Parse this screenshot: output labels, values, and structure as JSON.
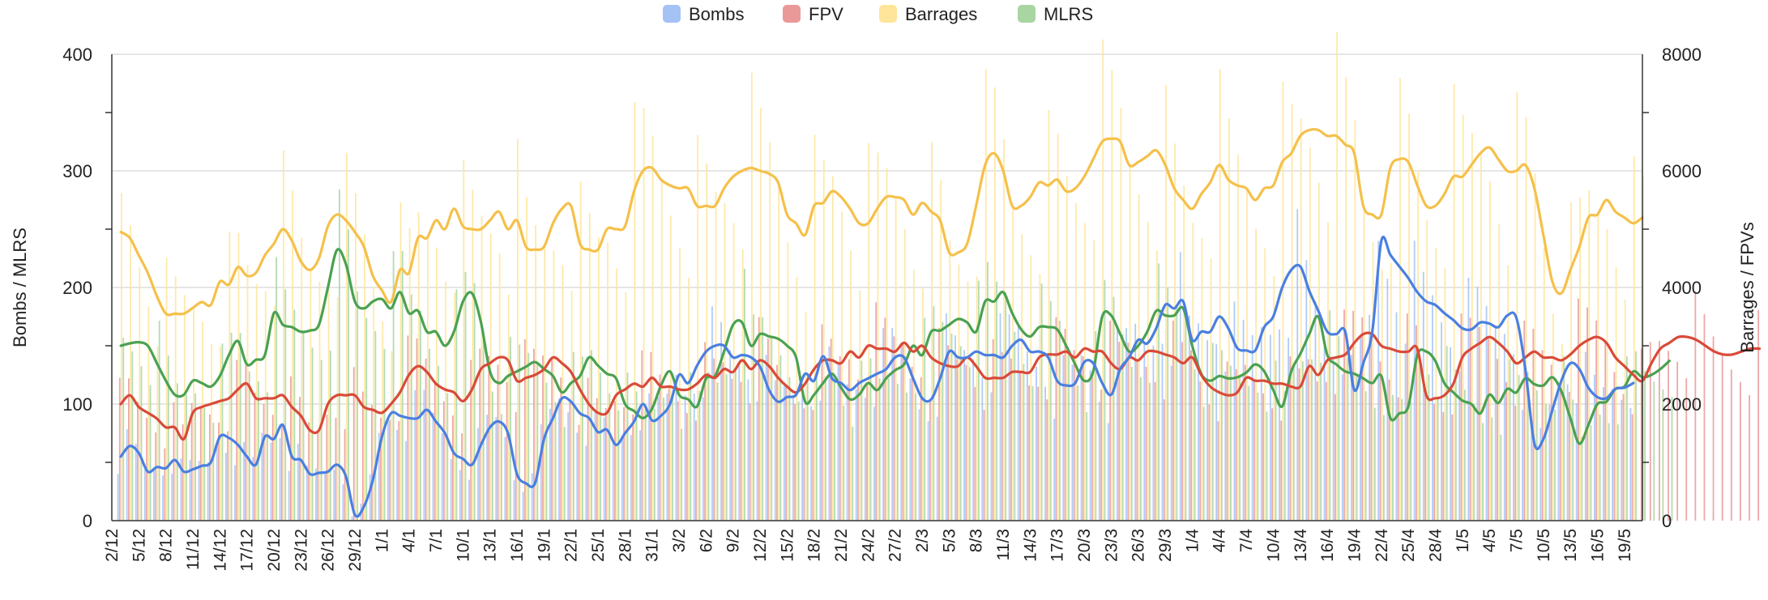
{
  "chart_data": {
    "type": "line",
    "subtype": "dual-axis line chart over daily bars",
    "legend_position": "top-center",
    "grid": true,
    "left_axis": {
      "label": "Bombs / MLRS",
      "ylim": [
        0,
        400
      ],
      "ticks": [
        0,
        100,
        200,
        300,
        400
      ]
    },
    "right_axis": {
      "label": "Barrages / FPVs",
      "ylim": [
        0,
        8000
      ],
      "ticks": [
        0,
        2000,
        4000,
        6000,
        8000
      ]
    },
    "x_tick_labels": [
      "2/12",
      "5/12",
      "8/12",
      "11/12",
      "14/12",
      "17/12",
      "20/12",
      "23/12",
      "26/12",
      "29/12",
      "1/1",
      "4/1",
      "7/1",
      "10/1",
      "13/1",
      "16/1",
      "19/1",
      "22/1",
      "25/1",
      "28/1",
      "31/1",
      "3/2",
      "6/2",
      "9/2",
      "12/2",
      "15/2",
      "18/2",
      "21/2",
      "24/2",
      "27/2",
      "2/3",
      "5/3",
      "8/3",
      "11/3",
      "14/3",
      "17/3",
      "20/3",
      "23/3",
      "26/3",
      "29/3",
      "1/4",
      "4/4",
      "7/4",
      "10/4",
      "13/4",
      "16/4",
      "19/4",
      "22/4",
      "25/4",
      "28/4",
      "1/5",
      "4/5",
      "7/5",
      "10/5",
      "13/5",
      "16/5",
      "19/5"
    ],
    "x_start_day": 0,
    "x_end_day": 170,
    "x_tick_step_days": 3,
    "series": [
      {
        "name": "Bombs",
        "axis": "left",
        "color": "#4a7fe0",
        "legend_color": "#a4c2f4",
        "start_day": 1,
        "values": [
          55,
          64,
          58,
          42,
          46,
          45,
          52,
          42,
          44,
          47,
          50,
          72,
          71,
          65,
          55,
          48,
          72,
          70,
          82,
          55,
          52,
          40,
          41,
          42,
          48,
          38,
          5,
          12,
          35,
          72,
          92,
          90,
          88,
          88,
          95,
          85,
          75,
          58,
          53,
          48,
          65,
          80,
          85,
          75,
          40,
          32,
          32,
          70,
          88,
          105,
          102,
          92,
          88,
          76,
          78,
          65,
          75,
          85,
          100,
          86,
          90,
          100,
          125,
          118,
          133,
          145,
          150,
          150,
          140,
          142,
          140,
          132,
          112,
          102,
          106,
          108,
          126,
          120,
          141,
          122,
          118,
          112,
          118,
          122,
          126,
          130,
          140,
          140,
          122,
          105,
          104,
          122,
          145,
          140,
          140,
          145,
          142,
          142,
          140,
          150,
          155,
          145,
          145,
          140,
          120,
          116,
          118,
          136,
          135,
          118,
          108,
          130,
          140,
          155,
          152,
          165,
          185,
          182,
          188,
          155,
          162,
          162,
          175,
          165,
          148,
          146,
          146,
          166,
          175,
          200,
          215,
          218,
          197,
          180,
          162,
          160,
          162,
          112,
          135,
          162,
          240,
          228,
          218,
          208,
          196,
          188,
          185,
          178,
          172,
          165,
          164,
          170,
          169,
          166,
          176,
          174,
          130,
          66,
          70,
          95,
          120,
          135,
          130,
          114,
          106,
          105,
          113,
          114,
          118
        ]
      },
      {
        "name": "FPV",
        "axis": "right",
        "color": "#d94a38",
        "legend_color": "#ea9999",
        "start_day": 1,
        "values": [
          2000,
          2150,
          1950,
          1850,
          1750,
          1600,
          1600,
          1400,
          1850,
          1950,
          2000,
          2050,
          2100,
          2250,
          2350,
          2100,
          2100,
          2100,
          2150,
          1950,
          1800,
          1550,
          1550,
          2000,
          2150,
          2150,
          2150,
          1950,
          1900,
          1850,
          2000,
          2200,
          2500,
          2650,
          2550,
          2350,
          2250,
          2200,
          2050,
          2250,
          2600,
          2700,
          2800,
          2750,
          2400,
          2450,
          2500,
          2600,
          2800,
          2700,
          2550,
          2250,
          2000,
          1850,
          1850,
          2150,
          2250,
          2350,
          2300,
          2450,
          2300,
          2300,
          2250,
          2250,
          2350,
          2500,
          2450,
          2600,
          2550,
          2750,
          2600,
          2750,
          2650,
          2450,
          2300,
          2200,
          2350,
          2600,
          2750,
          2750,
          2700,
          2900,
          2800,
          3000,
          2950,
          2950,
          2900,
          3050,
          2900,
          3000,
          2800,
          2700,
          2650,
          2650,
          2800,
          2650,
          2450,
          2450,
          2450,
          2550,
          2550,
          2550,
          2800,
          2850,
          2850,
          2900,
          2800,
          2950,
          2900,
          2900,
          2700,
          2600,
          2800,
          2750,
          2900,
          2900,
          2850,
          2800,
          2700,
          2800,
          2500,
          2300,
          2200,
          2150,
          2200,
          2450,
          2400,
          2400,
          2350,
          2350,
          2300,
          2300,
          2650,
          2500,
          2750,
          2800,
          2850,
          3050,
          3200,
          3200,
          3000,
          2950,
          2900,
          2900,
          2950,
          2150,
          2100,
          2150,
          2350,
          2800,
          2950,
          3050,
          3150,
          3050,
          2900,
          2700,
          2800,
          2900,
          2800,
          2800,
          2750,
          2850,
          3000,
          3100,
          3150,
          3050,
          2800,
          2650,
          2500,
          2400,
          2700,
          2950,
          3050,
          3150,
          3150,
          3100,
          3000,
          2900,
          2850,
          2850,
          2900,
          2950,
          2950
        ]
      },
      {
        "name": "Barrages",
        "axis": "right",
        "color": "#f5c04a",
        "legend_color": "#ffe599",
        "start_day": 1,
        "values": [
          4950,
          4850,
          4550,
          4250,
          3850,
          3550,
          3550,
          3550,
          3650,
          3750,
          3700,
          4100,
          4050,
          4350,
          4200,
          4250,
          4550,
          4750,
          5000,
          4800,
          4450,
          4300,
          4500,
          5050,
          5250,
          5150,
          4950,
          4700,
          4200,
          3950,
          3750,
          4300,
          4250,
          4850,
          4850,
          5150,
          5000,
          5350,
          5050,
          5000,
          5000,
          5150,
          5300,
          5000,
          5150,
          4700,
          4650,
          4700,
          5100,
          5350,
          5400,
          4750,
          4650,
          4650,
          5000,
          5000,
          5050,
          5650,
          6000,
          6050,
          5850,
          5750,
          5700,
          5700,
          5400,
          5400,
          5400,
          5700,
          5900,
          6000,
          6050,
          6000,
          5950,
          5800,
          5250,
          5100,
          4900,
          5400,
          5450,
          5650,
          5550,
          5350,
          5100,
          5100,
          5350,
          5550,
          5550,
          5500,
          5250,
          5450,
          5300,
          5150,
          4600,
          4600,
          4750,
          5400,
          6100,
          6300,
          6000,
          5400,
          5400,
          5550,
          5800,
          5750,
          5850,
          5650,
          5700,
          5900,
          6200,
          6500,
          6550,
          6500,
          6100,
          6150,
          6250,
          6350,
          6100,
          5700,
          5500,
          5350,
          5600,
          5800,
          6100,
          5850,
          5750,
          5700,
          5500,
          5700,
          5750,
          6150,
          6300,
          6600,
          6700,
          6700,
          6600,
          6600,
          6450,
          6300,
          5400,
          5250,
          5250,
          6050,
          6200,
          6150,
          5750,
          5400,
          5400,
          5600,
          5900,
          5900,
          6100,
          6300,
          6400,
          6200,
          6000,
          6000,
          6100,
          5700,
          4900,
          4100,
          3900,
          4300,
          4700,
          5200,
          5250,
          5500,
          5300,
          5200,
          5100,
          5200
        ]
      },
      {
        "name": "MLRS",
        "axis": "left",
        "color": "#4aa150",
        "legend_color": "#a8d5a2",
        "start_day": 1,
        "values": [
          150,
          152,
          153,
          150,
          135,
          120,
          108,
          108,
          120,
          118,
          115,
          124,
          142,
          154,
          134,
          138,
          142,
          178,
          168,
          166,
          162,
          163,
          168,
          200,
          232,
          220,
          188,
          182,
          188,
          190,
          182,
          196,
          178,
          180,
          162,
          162,
          150,
          162,
          188,
          195,
          170,
          128,
          118,
          124,
          128,
          132,
          136,
          130,
          124,
          110,
          118,
          124,
          140,
          133,
          126,
          122,
          100,
          94,
          88,
          96,
          116,
          128,
          108,
          104,
          98,
          122,
          124,
          145,
          168,
          170,
          150,
          160,
          158,
          156,
          150,
          140,
          102,
          108,
          118,
          126,
          114,
          104,
          108,
          118,
          112,
          122,
          129,
          134,
          150,
          142,
          162,
          163,
          168,
          173,
          170,
          162,
          188,
          188,
          196,
          178,
          164,
          158,
          166,
          166,
          164,
          150,
          134,
          120,
          128,
          175,
          176,
          160,
          145,
          150,
          162,
          180,
          176,
          176,
          182,
          150,
          126,
          120,
          124,
          122,
          123,
          127,
          134,
          128,
          112,
          98,
          128,
          143,
          160,
          175,
          142,
          134,
          128,
          126,
          122,
          118,
          124,
          88,
          92,
          98,
          142,
          145,
          137,
          118,
          110,
          103,
          100,
          92,
          108,
          101,
          113,
          110,
          122,
          117,
          116,
          123,
          111,
          88,
          66,
          82,
          100,
          102,
          113,
          115,
          128,
          123,
          125,
          130,
          137
        ]
      }
    ],
    "bar_series": [
      {
        "name": "Bombs",
        "axis": "left",
        "color": "#a4c2f4",
        "follows": "Bombs"
      },
      {
        "name": "FPV",
        "axis": "right",
        "color": "#ea9999",
        "follows": "FPV"
      },
      {
        "name": "Barrages",
        "axis": "right",
        "color": "#ffe599",
        "follows": "Barrages"
      },
      {
        "name": "MLRS",
        "axis": "left",
        "color": "#a8d5a2",
        "follows": "MLRS"
      }
    ]
  }
}
